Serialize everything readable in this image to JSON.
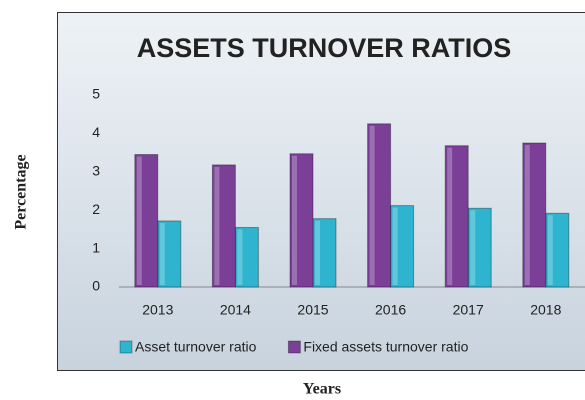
{
  "chart_data": {
    "type": "bar",
    "title": "ASSETS TURNOVER RATIOS",
    "y_label": "Percentage",
    "x_label": "Years",
    "categories": [
      "2013",
      "2014",
      "2015",
      "2016",
      "2017",
      "2018"
    ],
    "series": [
      {
        "name": "Asset turnover ratio",
        "color": "#2fb4d0",
        "values": [
          1.72,
          1.55,
          1.78,
          2.12,
          2.05,
          1.92
        ]
      },
      {
        "name": "Fixed assets turnover ratio",
        "color": "#7b3f98",
        "values": [
          3.45,
          3.18,
          3.47,
          4.25,
          3.68,
          3.75
        ]
      }
    ],
    "ylim": [
      0,
      5
    ],
    "yticks": [
      0,
      1,
      2,
      3,
      4,
      5
    ],
    "grid": false,
    "legend": "bottom"
  }
}
